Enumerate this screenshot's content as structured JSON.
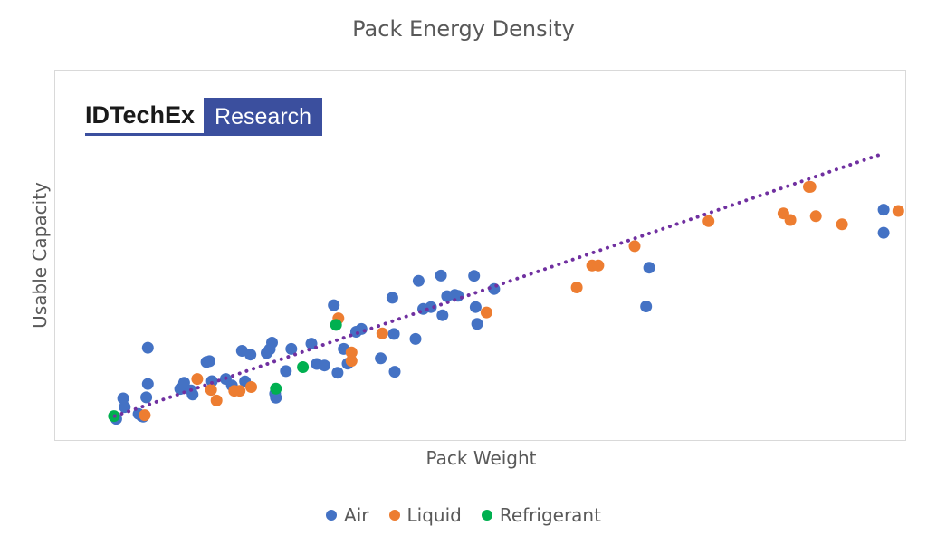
{
  "chart_data": {
    "type": "scatter",
    "title": "Pack Energy Density",
    "xlabel": "Pack Weight",
    "ylabel": "Usable Capacity",
    "x_ticks": "none",
    "y_ticks": "none",
    "xlim": [
      0,
      100
    ],
    "ylim": [
      0,
      100
    ],
    "grid": false,
    "legend_position": "bottom",
    "series": [
      {
        "name": "Air",
        "color": "#4472C4",
        "points": [
          [
            0.4,
            -0.5
          ],
          [
            1.5,
            3.3
          ],
          [
            1.3,
            6.1
          ],
          [
            4.3,
            6.4
          ],
          [
            3.3,
            1.1
          ],
          [
            3.7,
            0.4
          ],
          [
            3.9,
            0.2
          ],
          [
            4.5,
            10.7
          ],
          [
            4.5,
            22.3
          ],
          [
            8.7,
            9.1
          ],
          [
            9.2,
            11.1
          ],
          [
            10.1,
            8.6
          ],
          [
            10.3,
            7.3
          ],
          [
            12.1,
            17.7
          ],
          [
            12.5,
            18
          ],
          [
            12.8,
            11.6
          ],
          [
            14.6,
            12.3
          ],
          [
            15.4,
            10.2
          ],
          [
            16.7,
            21.3
          ],
          [
            17.1,
            11.5
          ],
          [
            17.8,
            20.1
          ],
          [
            19.9,
            20.6
          ],
          [
            20.3,
            21.8
          ],
          [
            20.6,
            23.9
          ],
          [
            21,
            7.6
          ],
          [
            21.1,
            6.3
          ],
          [
            22.4,
            14.8
          ],
          [
            23.1,
            21.9
          ],
          [
            25.7,
            23.6
          ],
          [
            26.4,
            17.1
          ],
          [
            27.4,
            16.6
          ],
          [
            28.6,
            35.9
          ],
          [
            29.1,
            14.3
          ],
          [
            29.9,
            21.9
          ],
          [
            30.4,
            17.2
          ],
          [
            31.5,
            27.4
          ],
          [
            32.2,
            28.3
          ],
          [
            34.7,
            18.9
          ],
          [
            36.2,
            38.3
          ],
          [
            36.4,
            26.7
          ],
          [
            36.5,
            14.6
          ],
          [
            39.2,
            25.1
          ],
          [
            39.6,
            43.7
          ],
          [
            40.2,
            34.7
          ],
          [
            41.2,
            35.3
          ],
          [
            42.5,
            45.4
          ],
          [
            42.7,
            32.7
          ],
          [
            43.3,
            38.8
          ],
          [
            44.3,
            39.2
          ],
          [
            44.7,
            38.9
          ],
          [
            46.8,
            45.3
          ],
          [
            47,
            35.3
          ],
          [
            47.2,
            29.9
          ],
          [
            49.4,
            41.1
          ],
          [
            69.5,
            47.9
          ],
          [
            69.1,
            35.5
          ],
          [
            99.9,
            66.5
          ],
          [
            99.9,
            59.1
          ]
        ]
      },
      {
        "name": "Liquid",
        "color": "#ED7D31",
        "points": [
          [
            4.1,
            0.7
          ],
          [
            10.9,
            12.3
          ],
          [
            12.7,
            8.8
          ],
          [
            13.4,
            5.4
          ],
          [
            15.7,
            8.5
          ],
          [
            16.4,
            8.5
          ],
          [
            17.9,
            9.7
          ],
          [
            29.2,
            31.7
          ],
          [
            30.9,
            20.8
          ],
          [
            30.9,
            18.1
          ],
          [
            34.9,
            26.9
          ],
          [
            48.4,
            33.6
          ],
          [
            60.1,
            41.6
          ],
          [
            62.1,
            48.6
          ],
          [
            62.9,
            48.6
          ],
          [
            67.6,
            54.8
          ],
          [
            77.2,
            62.8
          ],
          [
            86.9,
            65.3
          ],
          [
            87.8,
            63.2
          ],
          [
            90.2,
            73.8
          ],
          [
            90.4,
            73.8
          ],
          [
            91.1,
            64.4
          ],
          [
            94.5,
            61.8
          ],
          [
            101.8,
            66.1
          ]
        ]
      },
      {
        "name": "Refrigerant",
        "color": "#00B050",
        "points": [
          [
            0.1,
            0.4
          ],
          [
            21.1,
            9.2
          ],
          [
            24.6,
            16.1
          ],
          [
            28.9,
            29.6
          ]
        ]
      }
    ],
    "trendline": {
      "type": "linear",
      "style": "dotted",
      "color": "#7030A0",
      "x_range": [
        0.2,
        100
      ],
      "y_range": [
        0.4,
        84.6
      ]
    }
  },
  "legend": {
    "items": [
      {
        "label": "Air",
        "color": "#4472C4"
      },
      {
        "label": "Liquid",
        "color": "#ED7D31"
      },
      {
        "label": "Refrigerant",
        "color": "#00B050"
      }
    ]
  },
  "logo": {
    "brand": "IDTechEx",
    "tag": "Research",
    "brand_color": "#3B4F9E"
  }
}
